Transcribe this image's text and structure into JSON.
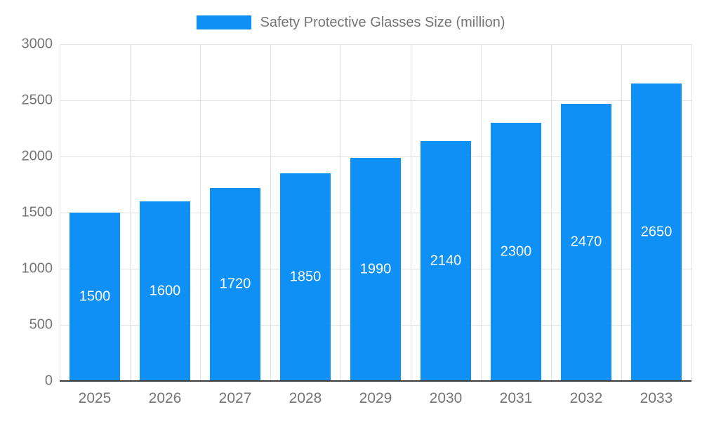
{
  "chart_data": {
    "type": "bar",
    "title": "Safety Protective Glasses Size (million)",
    "categories": [
      "2025",
      "2026",
      "2027",
      "2028",
      "2029",
      "2030",
      "2031",
      "2032",
      "2033"
    ],
    "values": [
      1500,
      1600,
      1720,
      1850,
      1990,
      2140,
      2300,
      2470,
      2650
    ],
    "xlabel": "",
    "ylabel": "",
    "ylim": [
      0,
      3000
    ],
    "yticks": [
      0,
      500,
      1000,
      1500,
      2000,
      2500,
      3000
    ],
    "grid": true,
    "legend_position": "top",
    "bar_color": "#0e90f5",
    "value_label_color": "#ffffff",
    "axis_label_color": "#757575",
    "gridline_color": "#e3e3e3",
    "axis_line_color": "#3d3d3d"
  },
  "legend": {
    "label": "Safety Protective Glasses Size (million)",
    "swatch_color": "#0e90f5"
  }
}
